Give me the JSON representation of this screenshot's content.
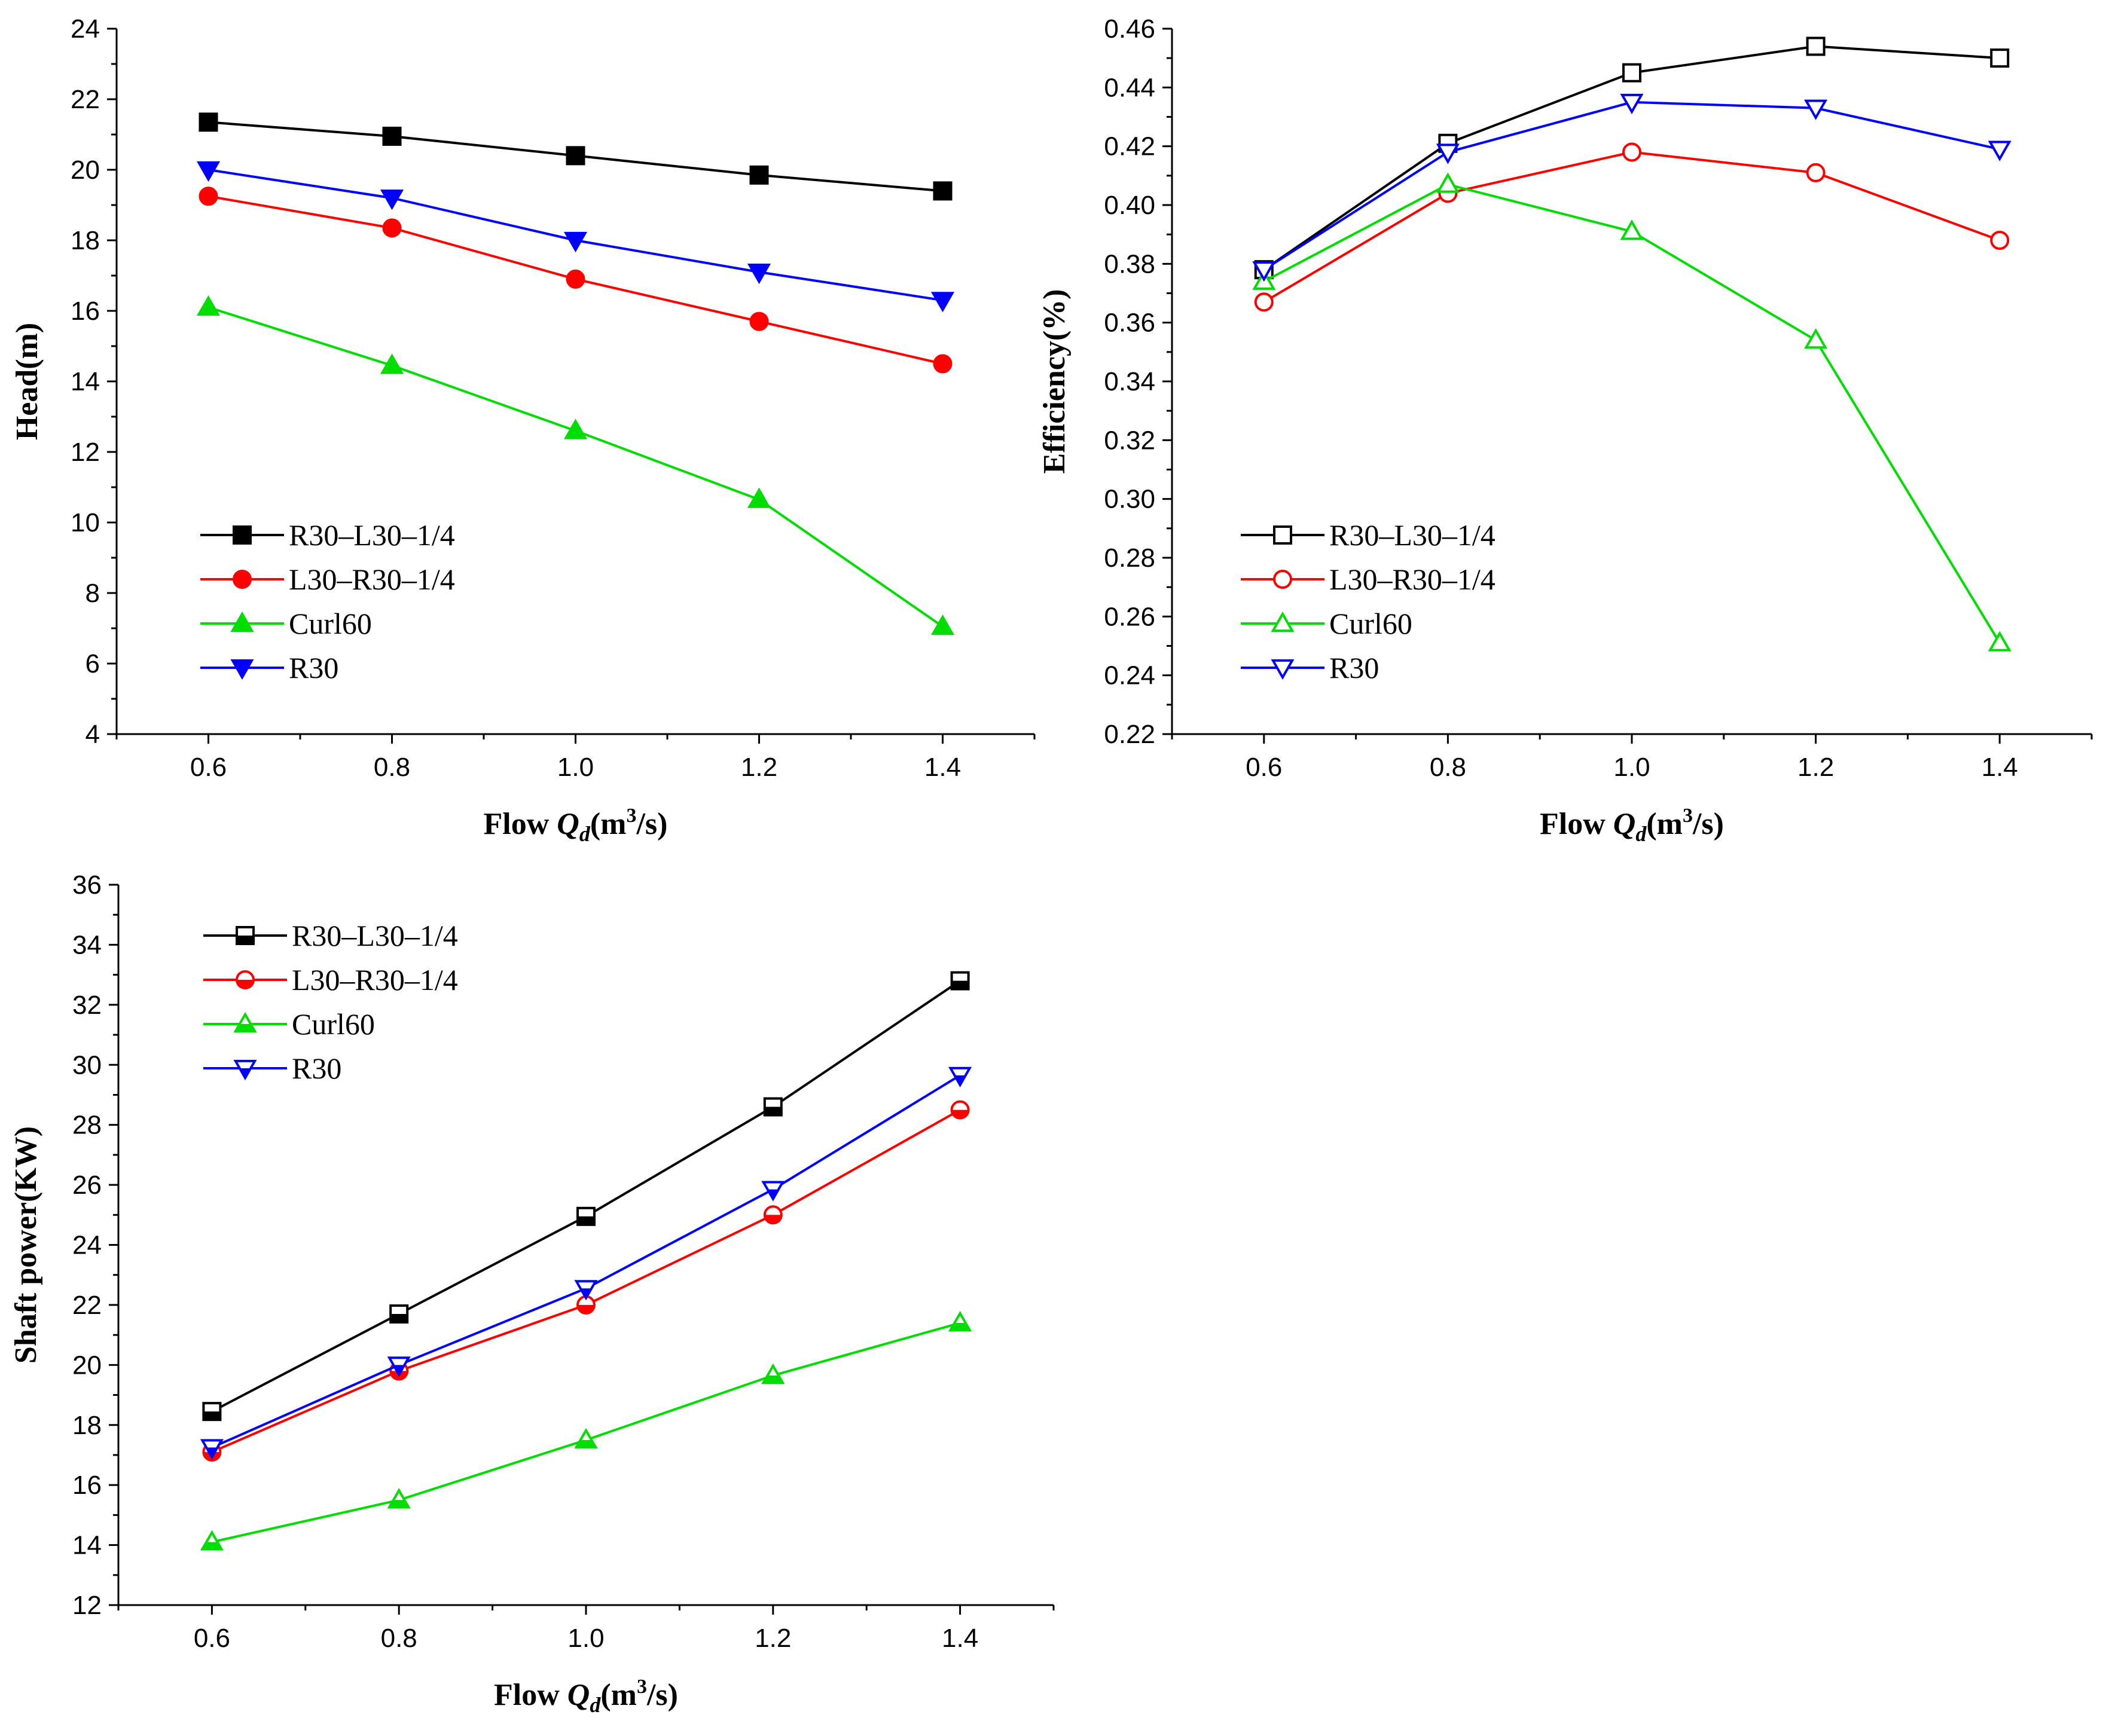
{
  "chart_data": [
    {
      "type": "line",
      "id": "head",
      "xlabel": "Flow Qd(m3/s)",
      "xlabel_parts": {
        "prefix": "Flow ",
        "q": "Q",
        "sub": "d",
        "mid": "(m",
        "sup": "3",
        "suffix": "/s)"
      },
      "ylabel": "Head(m)",
      "x": [
        0.6,
        0.8,
        1.0,
        1.2,
        1.4
      ],
      "xlim": [
        0.5,
        1.5
      ],
      "ylim": [
        4,
        24
      ],
      "xticks": [
        "0.6",
        "0.8",
        "1.0",
        "1.2",
        "1.4"
      ],
      "yticks": [
        "4",
        "6",
        "8",
        "10",
        "12",
        "14",
        "16",
        "18",
        "20",
        "22",
        "24"
      ],
      "legend_position": "bottom-left",
      "series": [
        {
          "name": "R30–L30–1/4",
          "color": "#000000",
          "marker": "square",
          "fill": "filled",
          "values": [
            21.35,
            20.95,
            20.4,
            19.85,
            19.4
          ]
        },
        {
          "name": "L30–R30–1/4",
          "color": "#ff0000",
          "marker": "circle",
          "fill": "filled",
          "values": [
            19.25,
            18.35,
            16.9,
            15.7,
            14.5
          ]
        },
        {
          "name": "Curl60",
          "color": "#00dd00",
          "marker": "triangle-up",
          "fill": "filled",
          "values": [
            16.1,
            14.45,
            12.6,
            10.65,
            7.05
          ]
        },
        {
          "name": "R30",
          "color": "#0000ff",
          "marker": "triangle-down",
          "fill": "filled",
          "values": [
            20.0,
            19.2,
            18.0,
            17.1,
            16.3
          ]
        }
      ]
    },
    {
      "type": "line",
      "id": "efficiency",
      "xlabel": "Flow Qd(m3/s)",
      "xlabel_parts": {
        "prefix": "Flow ",
        "q": "Q",
        "sub": "d",
        "mid": "(m",
        "sup": "3",
        "suffix": "/s)"
      },
      "ylabel": "Efficiency(%)",
      "x": [
        0.6,
        0.8,
        1.0,
        1.2,
        1.4
      ],
      "xlim": [
        0.5,
        1.5
      ],
      "ylim": [
        0.22,
        0.46
      ],
      "xticks": [
        "0.6",
        "0.8",
        "1.0",
        "1.2",
        "1.4"
      ],
      "yticks": [
        "0.22",
        "0.24",
        "0.26",
        "0.28",
        "0.30",
        "0.32",
        "0.34",
        "0.36",
        "0.38",
        "0.40",
        "0.42",
        "0.44",
        "0.46"
      ],
      "legend_position": "bottom-left",
      "series": [
        {
          "name": "R30–L30–1/4",
          "color": "#000000",
          "marker": "square",
          "fill": "open",
          "values": [
            0.378,
            0.421,
            0.445,
            0.454,
            0.45
          ]
        },
        {
          "name": "L30–R30–1/4",
          "color": "#ff0000",
          "marker": "circle",
          "fill": "open",
          "values": [
            0.367,
            0.404,
            0.418,
            0.411,
            0.388
          ]
        },
        {
          "name": "Curl60",
          "color": "#00dd00",
          "marker": "triangle-up",
          "fill": "open",
          "values": [
            0.374,
            0.407,
            0.391,
            0.354,
            0.251
          ]
        },
        {
          "name": "R30",
          "color": "#0000ff",
          "marker": "triangle-down",
          "fill": "open",
          "values": [
            0.378,
            0.418,
            0.435,
            0.433,
            0.419
          ]
        }
      ]
    },
    {
      "type": "line",
      "id": "shaft-power",
      "xlabel": "Flow Qd(m3/s)",
      "xlabel_parts": {
        "prefix": "Flow ",
        "q": "Q",
        "sub": "d",
        "mid": "(m",
        "sup": "3",
        "suffix": "/s)"
      },
      "ylabel": "Shaft power(KW)",
      "x": [
        0.6,
        0.8,
        1.0,
        1.2,
        1.4
      ],
      "xlim": [
        0.5,
        1.5
      ],
      "ylim": [
        12,
        36
      ],
      "xticks": [
        "0.6",
        "0.8",
        "1.0",
        "1.2",
        "1.4"
      ],
      "yticks": [
        "12",
        "14",
        "16",
        "18",
        "20",
        "22",
        "24",
        "26",
        "28",
        "30",
        "32",
        "34",
        "36"
      ],
      "legend_position": "top-left",
      "series": [
        {
          "name": "R30–L30–1/4",
          "color": "#000000",
          "marker": "square",
          "fill": "half",
          "values": [
            18.45,
            21.7,
            24.95,
            28.6,
            32.8
          ]
        },
        {
          "name": "L30–R30–1/4",
          "color": "#ff0000",
          "marker": "circle",
          "fill": "half",
          "values": [
            17.1,
            19.8,
            22.0,
            25.0,
            28.5
          ]
        },
        {
          "name": "Curl60",
          "color": "#00dd00",
          "marker": "triangle-up",
          "fill": "half",
          "values": [
            14.1,
            15.5,
            17.5,
            19.65,
            21.4
          ]
        },
        {
          "name": "R30",
          "color": "#0000ff",
          "marker": "triangle-down",
          "fill": "half",
          "values": [
            17.25,
            20.0,
            22.55,
            25.85,
            29.65
          ]
        }
      ]
    }
  ]
}
